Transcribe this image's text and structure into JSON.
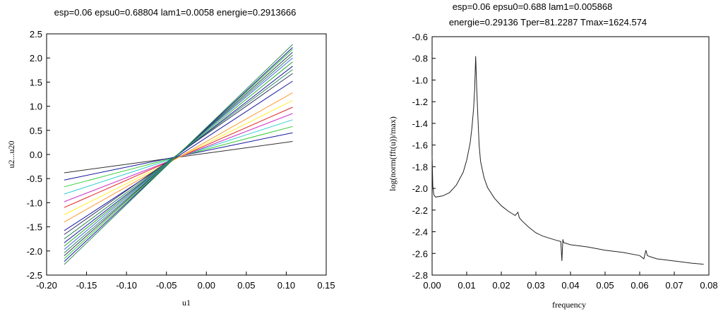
{
  "chart_data": [
    {
      "type": "line",
      "title": "esp=0.06 epsu0=0.68804 lam1=0.0058 energie=0.2913666",
      "xlabel": "u1",
      "ylabel": "u2...u20",
      "xlim": [
        -0.2,
        0.15
      ],
      "ylim": [
        -2.5,
        2.5
      ],
      "xticks": [
        "-0.20",
        "-0.15",
        "-0.10",
        "-0.05",
        "0.00",
        "0.05",
        "0.10",
        "0.15"
      ],
      "yticks": [
        "-2.5",
        "-2.0",
        "-1.5",
        "-1.0",
        "-0.5",
        "0.0",
        "0.5",
        "1.0",
        "1.5",
        "2.0",
        "2.5"
      ],
      "grid": false,
      "x_range": [
        -0.178,
        0.108
      ],
      "series": [
        {
          "color": "#333333",
          "values": [
            -0.38,
            0.27
          ]
        },
        {
          "color": "#1a1aa0",
          "values": [
            -0.53,
            0.45
          ]
        },
        {
          "color": "#33cc33",
          "values": [
            -0.67,
            0.58
          ]
        },
        {
          "color": "#33cccc",
          "values": [
            -0.82,
            0.72
          ]
        },
        {
          "color": "#cc33cc",
          "values": [
            -0.98,
            0.85
          ]
        },
        {
          "color": "#e02020",
          "values": [
            -1.1,
            0.98
          ]
        },
        {
          "color": "#ffee33",
          "values": [
            -1.25,
            1.12
          ]
        },
        {
          "color": "#ff9933",
          "values": [
            -1.4,
            1.28
          ]
        },
        {
          "color": "#1a1aa0",
          "values": [
            -1.58,
            1.52
          ]
        },
        {
          "color": "#333366",
          "values": [
            -1.66,
            1.68
          ]
        },
        {
          "color": "#2e8b57",
          "values": [
            -1.75,
            1.76
          ]
        },
        {
          "color": "#1a1aa0",
          "values": [
            -1.83,
            1.83
          ]
        },
        {
          "color": "#33aa33",
          "values": [
            -1.9,
            1.92
          ]
        },
        {
          "color": "#4169e1",
          "values": [
            -1.97,
            2.0
          ]
        },
        {
          "color": "#2e8b57",
          "values": [
            -2.04,
            2.06
          ]
        },
        {
          "color": "#333366",
          "values": [
            -2.1,
            2.12
          ]
        },
        {
          "color": "#33cc33",
          "values": [
            -2.16,
            2.18
          ]
        },
        {
          "color": "#1a1aa0",
          "values": [
            -2.22,
            2.22
          ]
        },
        {
          "color": "#2e8b57",
          "values": [
            -2.28,
            2.28
          ]
        }
      ]
    },
    {
      "type": "line",
      "title": [
        "esp=0.06 epsu0=0.688 lam1=0.005868",
        "energie=0.29136 Tper=81.2287 Tmax=1624.574"
      ],
      "xlabel": "frequency",
      "ylabel": "log(norm(fft(u))/max)",
      "xlim": [
        0.0,
        0.08
      ],
      "ylim": [
        -2.8,
        -0.6
      ],
      "xticks": [
        "0.00",
        "0.01",
        "0.02",
        "0.03",
        "0.04",
        "0.05",
        "0.06",
        "0.07",
        "0.08"
      ],
      "yticks": [
        "-2.8",
        "-2.6",
        "-2.4",
        "-2.2",
        "-2.0",
        "-1.8",
        "-1.6",
        "-1.4",
        "-1.2",
        "-1.0",
        "-0.8",
        "-0.6"
      ],
      "grid": false,
      "series": [
        {
          "color": "#222222",
          "x": [
            0.0,
            0.0002,
            0.0005,
            0.001,
            0.003,
            0.005,
            0.007,
            0.009,
            0.01,
            0.011,
            0.0115,
            0.012,
            0.0123,
            0.0126,
            0.0129,
            0.0132,
            0.0136,
            0.014,
            0.015,
            0.016,
            0.018,
            0.02,
            0.022,
            0.024,
            0.0248,
            0.0252,
            0.026,
            0.028,
            0.03,
            0.032,
            0.034,
            0.036,
            0.0372,
            0.0375,
            0.0378,
            0.038,
            0.04,
            0.045,
            0.05,
            0.055,
            0.06,
            0.0612,
            0.0618,
            0.0622,
            0.063,
            0.065,
            0.07,
            0.075,
            0.0785
          ],
          "y": [
            -1.7,
            -1.98,
            -2.06,
            -2.08,
            -2.07,
            -2.04,
            -1.97,
            -1.85,
            -1.74,
            -1.58,
            -1.44,
            -1.26,
            -1.08,
            -0.78,
            -1.08,
            -1.32,
            -1.6,
            -1.75,
            -1.9,
            -1.99,
            -2.09,
            -2.16,
            -2.21,
            -2.25,
            -2.22,
            -2.27,
            -2.3,
            -2.36,
            -2.41,
            -2.44,
            -2.46,
            -2.48,
            -2.49,
            -2.67,
            -2.47,
            -2.5,
            -2.52,
            -2.54,
            -2.57,
            -2.59,
            -2.62,
            -2.65,
            -2.57,
            -2.62,
            -2.63,
            -2.65,
            -2.67,
            -2.69,
            -2.7
          ]
        }
      ]
    }
  ]
}
